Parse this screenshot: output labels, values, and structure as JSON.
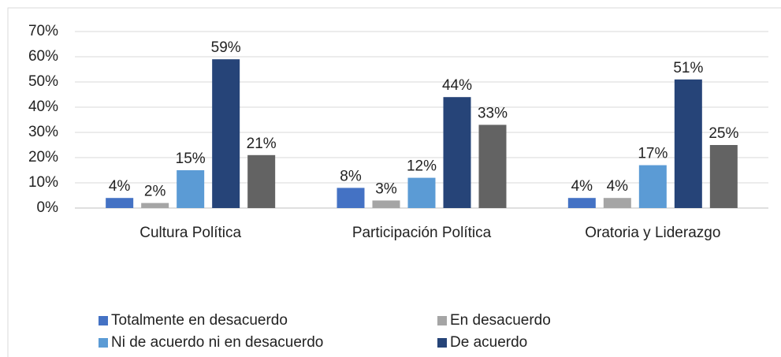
{
  "chart_data": {
    "type": "bar",
    "categories": [
      "Cultura Política",
      "Participación Política",
      "Oratoria y Liderazgo"
    ],
    "series": [
      {
        "name": "Totalmente en desacuerdo",
        "color": "#4472c4",
        "values": [
          4,
          8,
          4
        ],
        "value_labels": [
          "4%",
          "8%",
          "4%"
        ]
      },
      {
        "name": "En desacuerdo",
        "color": "#a5a5a5",
        "values": [
          2,
          3,
          4
        ],
        "value_labels": [
          "2%",
          "3%",
          "4%"
        ]
      },
      {
        "name": "Ni de acuerdo ni en desacuerdo",
        "color": "#5b9bd5",
        "values": [
          15,
          12,
          17
        ],
        "value_labels": [
          "15%",
          "12%",
          "17%"
        ]
      },
      {
        "name": "De acuerdo",
        "color": "#264478",
        "values": [
          59,
          44,
          51
        ],
        "value_labels": [
          "59%",
          "44%",
          "51%"
        ]
      },
      {
        "color": "#636363",
        "values": [
          21,
          33,
          25
        ],
        "value_labels": [
          "21%",
          "33%",
          "25%"
        ]
      }
    ],
    "ylim": [
      0,
      70
    ],
    "yticks": [
      {
        "value": 0,
        "label": "0%"
      },
      {
        "value": 10,
        "label": "10%"
      },
      {
        "value": 20,
        "label": "20%"
      },
      {
        "value": 30,
        "label": "30%"
      },
      {
        "value": 40,
        "label": "40%"
      },
      {
        "value": 50,
        "label": "50%"
      },
      {
        "value": 60,
        "label": "60%"
      },
      {
        "value": 70,
        "label": "70%"
      }
    ],
    "grid": true
  }
}
